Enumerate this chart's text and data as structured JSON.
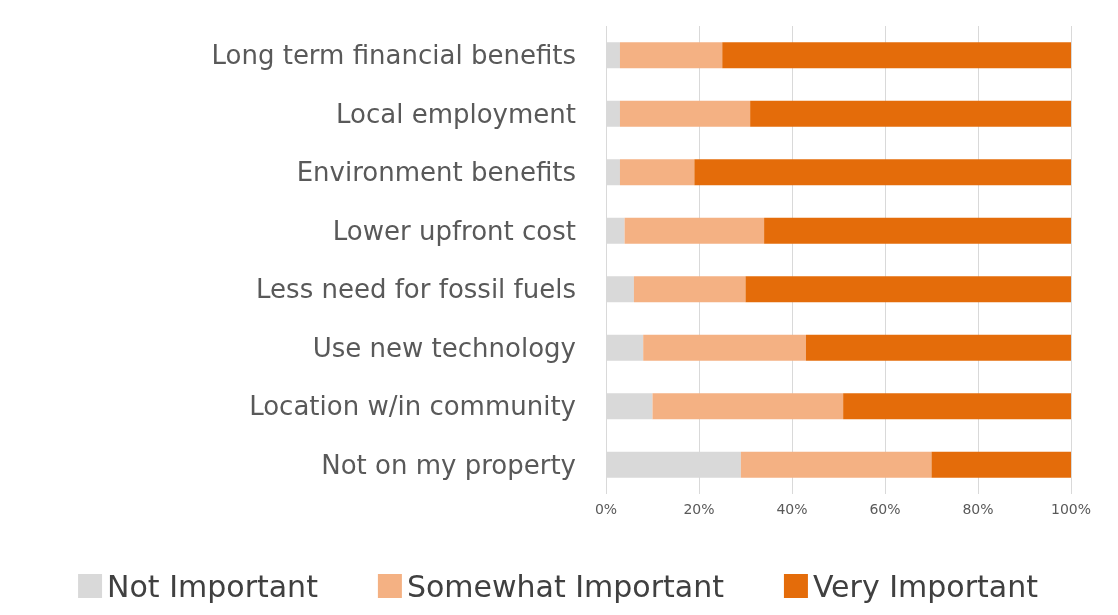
{
  "chart_data": {
    "type": "bar",
    "orientation": "horizontal",
    "stacked": true,
    "categories": [
      "Long term financial benefits",
      "Local employment",
      "Environment benefits",
      "Lower upfront cost",
      "Less need for fossil fuels",
      "Use new technology",
      "Location w/in community",
      "Not on my property"
    ],
    "series": [
      {
        "name": "Not Important",
        "color": "#d9d9d9",
        "values": [
          3,
          3,
          3,
          4,
          6,
          8,
          10,
          29
        ]
      },
      {
        "name": "Somewhat Important",
        "color": "#f4b183",
        "values": [
          22,
          28,
          16,
          30,
          24,
          35,
          41,
          41
        ]
      },
      {
        "name": "Very Important",
        "color": "#e46c0a",
        "values": [
          75,
          69,
          81,
          66,
          70,
          57,
          49,
          30
        ]
      }
    ],
    "xlim": [
      0,
      100
    ],
    "xticks": [
      {
        "value": 0,
        "label": "0%"
      },
      {
        "value": 20,
        "label": "20%"
      },
      {
        "value": 40,
        "label": "40%"
      },
      {
        "value": 60,
        "label": "60%"
      },
      {
        "value": 80,
        "label": "80%"
      },
      {
        "value": 100,
        "label": "100%"
      }
    ],
    "grid": "x",
    "legend": "bottom"
  }
}
